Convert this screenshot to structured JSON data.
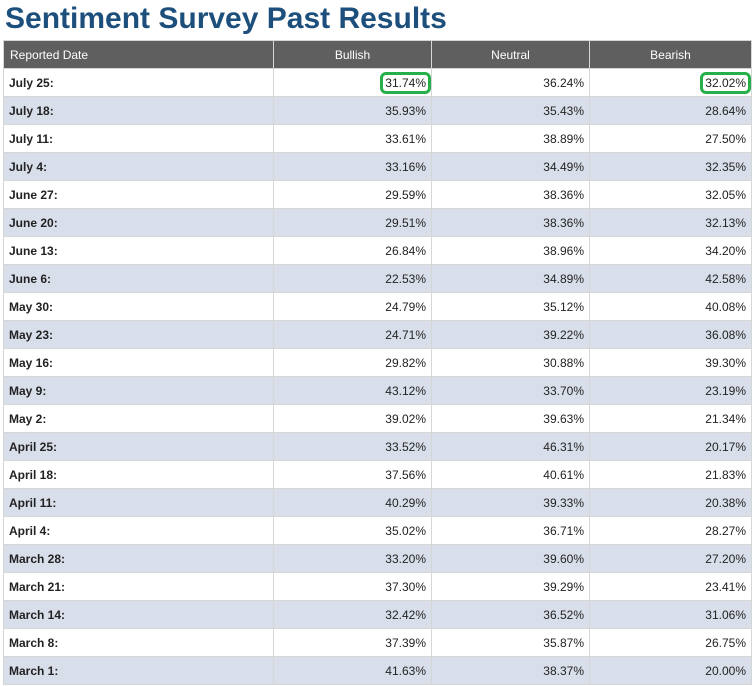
{
  "page": {
    "title": "Sentiment Survey Past Results"
  },
  "table": {
    "headers": [
      "Reported Date",
      "Bullish",
      "Neutral",
      "Bearish"
    ],
    "highlight_color": "#27b04a",
    "rows": [
      {
        "date": "July 25:",
        "bullish": "31.74%",
        "neutral": "36.24%",
        "bearish": "32.02%"
      },
      {
        "date": "July 18:",
        "bullish": "35.93%",
        "neutral": "35.43%",
        "bearish": "28.64%"
      },
      {
        "date": "July 11:",
        "bullish": "33.61%",
        "neutral": "38.89%",
        "bearish": "27.50%"
      },
      {
        "date": "July 4:",
        "bullish": "33.16%",
        "neutral": "34.49%",
        "bearish": "32.35%"
      },
      {
        "date": "June 27:",
        "bullish": "29.59%",
        "neutral": "38.36%",
        "bearish": "32.05%"
      },
      {
        "date": "June 20:",
        "bullish": "29.51%",
        "neutral": "38.36%",
        "bearish": "32.13%"
      },
      {
        "date": "June 13:",
        "bullish": "26.84%",
        "neutral": "38.96%",
        "bearish": "34.20%"
      },
      {
        "date": "June 6:",
        "bullish": "22.53%",
        "neutral": "34.89%",
        "bearish": "42.58%"
      },
      {
        "date": "May 30:",
        "bullish": "24.79%",
        "neutral": "35.12%",
        "bearish": "40.08%"
      },
      {
        "date": "May 23:",
        "bullish": "24.71%",
        "neutral": "39.22%",
        "bearish": "36.08%"
      },
      {
        "date": "May 16:",
        "bullish": "29.82%",
        "neutral": "30.88%",
        "bearish": "39.30%"
      },
      {
        "date": "May 9:",
        "bullish": "43.12%",
        "neutral": "33.70%",
        "bearish": "23.19%"
      },
      {
        "date": "May 2:",
        "bullish": "39.02%",
        "neutral": "39.63%",
        "bearish": "21.34%"
      },
      {
        "date": "April 25:",
        "bullish": "33.52%",
        "neutral": "46.31%",
        "bearish": "20.17%"
      },
      {
        "date": "April 18:",
        "bullish": "37.56%",
        "neutral": "40.61%",
        "bearish": "21.83%"
      },
      {
        "date": "April 11:",
        "bullish": "40.29%",
        "neutral": "39.33%",
        "bearish": "20.38%"
      },
      {
        "date": "April 4:",
        "bullish": "35.02%",
        "neutral": "36.71%",
        "bearish": "28.27%"
      },
      {
        "date": "March 28:",
        "bullish": "33.20%",
        "neutral": "39.60%",
        "bearish": "27.20%"
      },
      {
        "date": "March 21:",
        "bullish": "37.30%",
        "neutral": "39.29%",
        "bearish": "23.41%"
      },
      {
        "date": "March 14:",
        "bullish": "32.42%",
        "neutral": "36.52%",
        "bearish": "31.06%"
      },
      {
        "date": "March 8:",
        "bullish": "37.39%",
        "neutral": "35.87%",
        "bearish": "26.75%"
      },
      {
        "date": "March 1:",
        "bullish": "41.63%",
        "neutral": "38.37%",
        "bearish": "20.00%"
      }
    ]
  }
}
